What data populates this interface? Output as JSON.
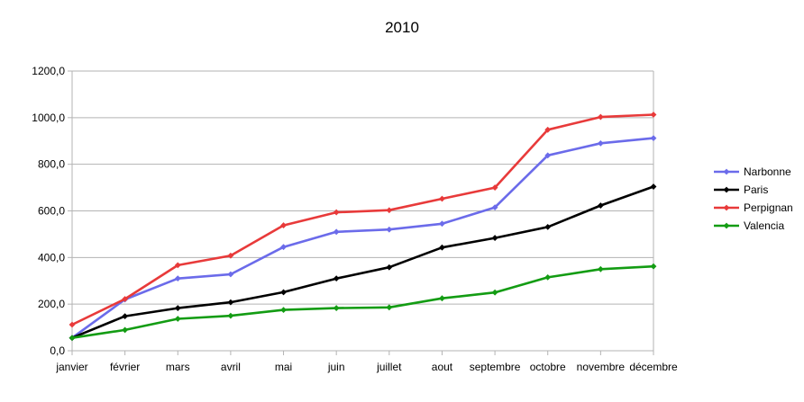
{
  "chart_data": {
    "type": "line",
    "title": "2010",
    "xlabel": "",
    "ylabel": "",
    "ylim": [
      0,
      1200
    ],
    "yticks": [
      0,
      200,
      400,
      600,
      800,
      1000,
      1200
    ],
    "ytick_labels": [
      "0,0",
      "200,0",
      "400,0",
      "600,0",
      "800,0",
      "1000,0",
      "1200,0"
    ],
    "grid": "horizontal",
    "legend_position": "right",
    "categories": [
      "janvier",
      "février",
      "mars",
      "avril",
      "mai",
      "juin",
      "juillet",
      "aout",
      "septembre",
      "octobre",
      "novembre",
      "décembre"
    ],
    "series": [
      {
        "name": "Narbonne",
        "color": "#6b6bea",
        "values": [
          55,
          220,
          310,
          328,
          445,
          510,
          520,
          545,
          615,
          838,
          890,
          912
        ]
      },
      {
        "name": "Paris",
        "color": "#000000",
        "values": [
          55,
          148,
          183,
          208,
          251,
          310,
          358,
          443,
          484,
          531,
          623,
          704
        ]
      },
      {
        "name": "Perpignan",
        "color": "#e83a3a",
        "values": [
          112,
          222,
          367,
          408,
          538,
          594,
          603,
          652,
          700,
          948,
          1003,
          1013
        ]
      },
      {
        "name": "Valencia",
        "color": "#139c13",
        "values": [
          55,
          89,
          137,
          150,
          175,
          183,
          186,
          225,
          250,
          315,
          350,
          362
        ]
      }
    ]
  }
}
